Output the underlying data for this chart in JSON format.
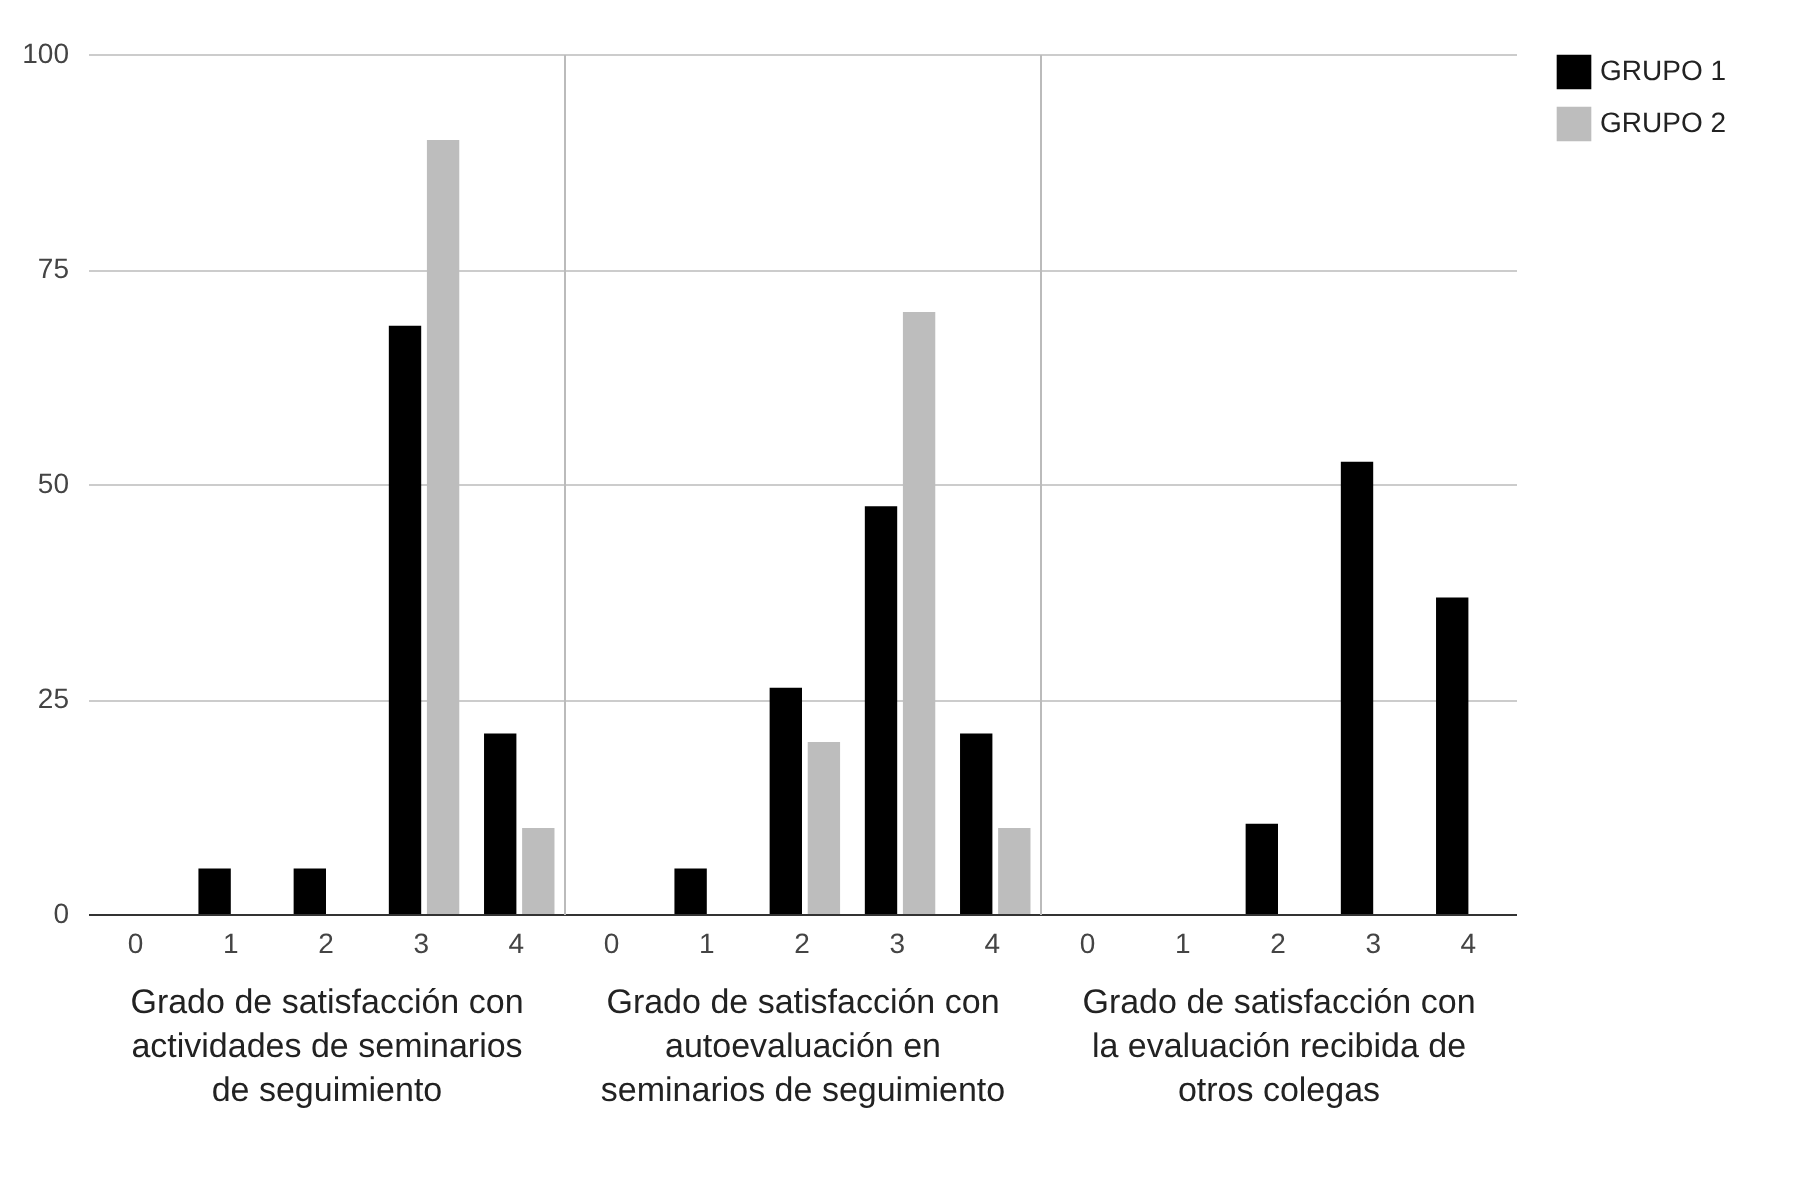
{
  "chart_data": [
    {
      "type": "bar",
      "xlabel": "Grado de satisfacción con actividades de seminarios de seguimiento",
      "categories": [
        "0",
        "1",
        "2",
        "3",
        "4"
      ],
      "series": [
        {
          "name": "GRUPO 1",
          "color": "#000000",
          "values": [
            0,
            5.3,
            5.3,
            68.4,
            21
          ]
        },
        {
          "name": "GRUPO 2",
          "color": "#bdbdbd",
          "values": [
            0,
            0,
            0,
            90,
            10
          ]
        }
      ],
      "ylim": [
        0,
        100
      ],
      "yticks": [
        0,
        25,
        50,
        75,
        100
      ],
      "grid": "y",
      "legend": "top right"
    },
    {
      "type": "bar",
      "xlabel": "Grado de satisfacción con autoevaluación en seminarios de seguimiento",
      "categories": [
        "0",
        "1",
        "2",
        "3",
        "4"
      ],
      "series": [
        {
          "name": "GRUPO 1",
          "color": "#000000",
          "values": [
            0,
            5.3,
            26.3,
            47.4,
            21
          ]
        },
        {
          "name": "GRUPO 2",
          "color": "#bdbdbd",
          "values": [
            0,
            0,
            20,
            70,
            10
          ]
        }
      ],
      "ylim": [
        0,
        100
      ],
      "yticks": [
        0,
        25,
        50,
        75,
        100
      ],
      "grid": "y",
      "tick_labels": "x",
      "legend": "top right"
    },
    {
      "type": "bar",
      "xlabel": "Grado de satisfacción con la evaluación recibida de otros colegas",
      "categories": [
        "0",
        "1",
        "2",
        "3",
        "4"
      ],
      "series": [
        {
          "name": "GRUPO 1",
          "color": "#000000",
          "values": [
            0,
            0,
            10.5,
            52.6,
            36.8
          ]
        },
        {
          "name": "GRUPO 2",
          "color": "#bdbdbd",
          "values": [
            0,
            0,
            0,
            0,
            0
          ]
        }
      ],
      "ylim": [
        0,
        100
      ],
      "yticks": [
        0,
        25,
        50,
        75,
        100
      ],
      "grid": "y",
      "tick_labels": "x",
      "legend": "top right"
    }
  ]
}
